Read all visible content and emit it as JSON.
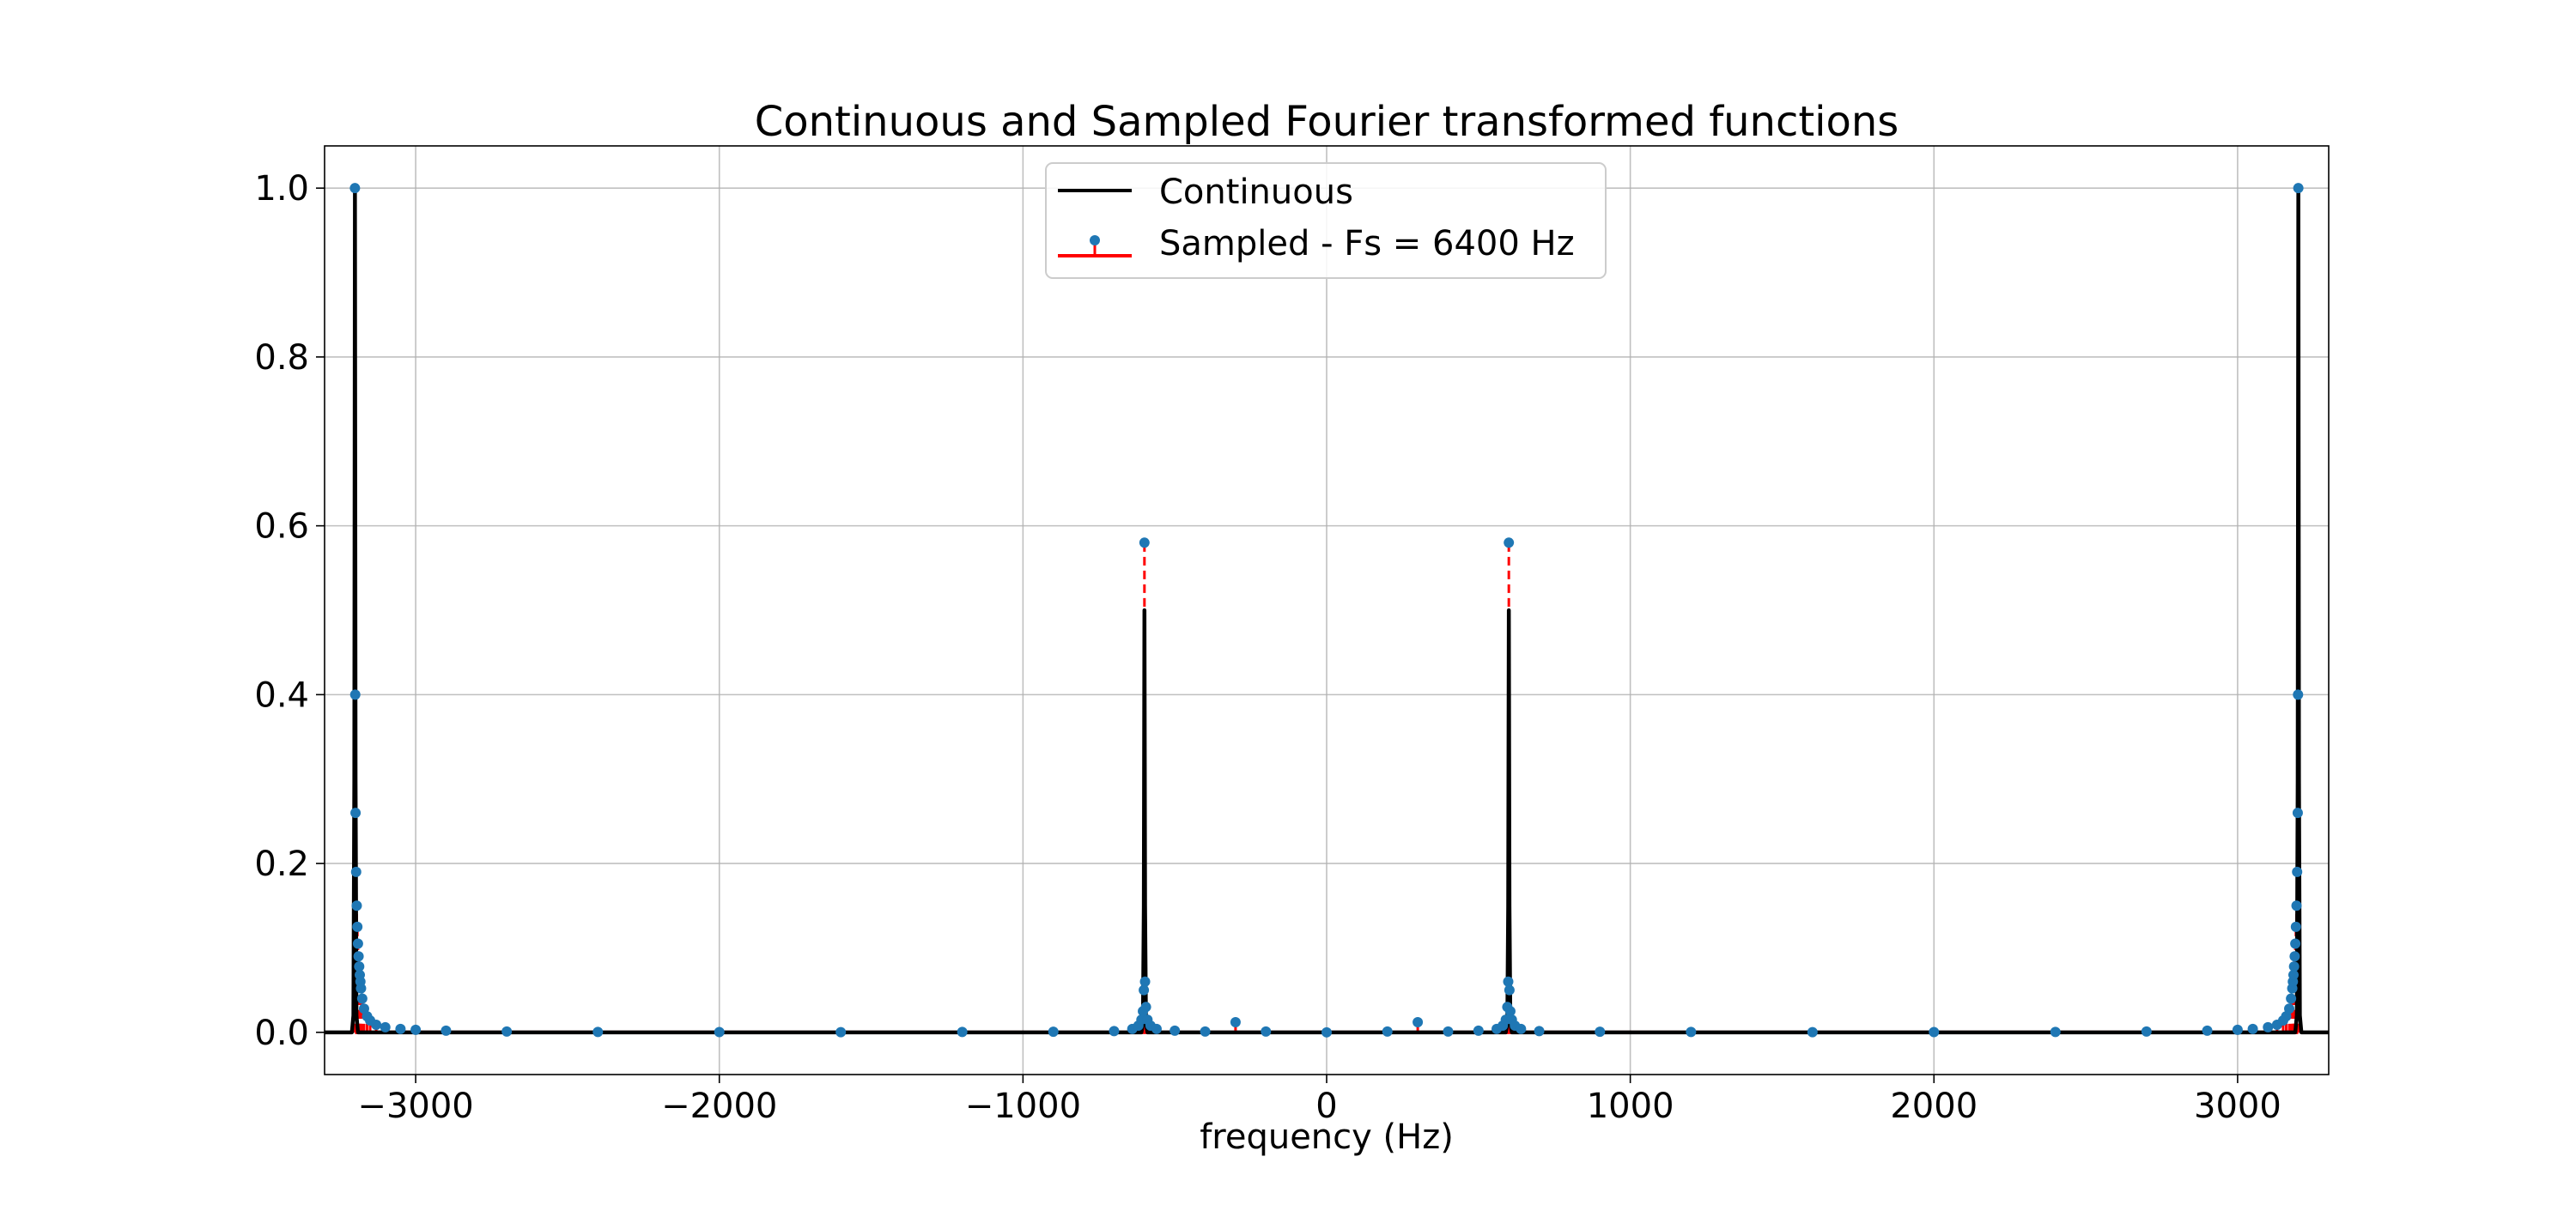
{
  "chart_data": {
    "type": "line",
    "title": "Continuous and Sampled Fourier transformed functions",
    "xlabel": "frequency (Hz)",
    "ylabel": "",
    "xlim": [
      -3300,
      3300
    ],
    "ylim": [
      -0.05,
      1.05
    ],
    "grid": true,
    "legend_position": "top-center",
    "xticks": [
      -3000,
      -2000,
      -1000,
      0,
      1000,
      2000,
      3000
    ],
    "xtick_labels": [
      "−3000",
      "−2000",
      "−1000",
      "0",
      "1000",
      "2000",
      "3000"
    ],
    "yticks": [
      0.0,
      0.2,
      0.4,
      0.6,
      0.8,
      1.0
    ],
    "ytick_labels": [
      "0.0",
      "0.2",
      "0.4",
      "0.6",
      "0.8",
      "1.0"
    ],
    "series": [
      {
        "name": "Continuous",
        "kind": "line",
        "color": "#000000",
        "x": [
          -3300,
          -3210,
          -3205,
          -3202,
          -3200,
          -3198,
          -3195,
          -3190,
          -3150,
          -1000,
          -610,
          -605,
          -602,
          -600,
          -598,
          -595,
          -590,
          -300,
          0,
          300,
          590,
          595,
          598,
          600,
          602,
          605,
          610,
          1000,
          3150,
          3190,
          3195,
          3198,
          3200,
          3202,
          3205,
          3210,
          3300
        ],
        "y": [
          0.0,
          0.0,
          0.02,
          0.3,
          1.0,
          0.3,
          0.02,
          0.0,
          0.0,
          0.0,
          0.0,
          0.01,
          0.15,
          0.5,
          0.15,
          0.01,
          0.0,
          0.0,
          0.0,
          0.0,
          0.0,
          0.01,
          0.15,
          0.5,
          0.15,
          0.01,
          0.0,
          0.0,
          0.0,
          0.0,
          0.02,
          0.3,
          1.0,
          0.3,
          0.02,
          0.0,
          0.0
        ]
      },
      {
        "name": "Sampled - Fs = 6400 Hz",
        "kind": "stem",
        "color": "#ff0000",
        "marker_color": "#1f77b4",
        "x": [
          -3200,
          -3199,
          -3198,
          -3196,
          -3194,
          -3192,
          -3190,
          -3188,
          -3186,
          -3184,
          -3182,
          -3180,
          -3176,
          -3170,
          -3160,
          -3150,
          -3130,
          -3100,
          -3050,
          -3000,
          -2900,
          -2700,
          -2400,
          -2000,
          -1600,
          -1200,
          -900,
          -700,
          -640,
          -620,
          -610,
          -605,
          -602,
          -600,
          -598,
          -595,
          -590,
          -580,
          -560,
          -500,
          -400,
          -300,
          -200,
          0,
          200,
          300,
          400,
          500,
          560,
          580,
          590,
          595,
          598,
          600,
          602,
          605,
          610,
          620,
          640,
          700,
          900,
          1200,
          1600,
          2000,
          2400,
          2700,
          2900,
          3000,
          3050,
          3100,
          3130,
          3150,
          3160,
          3170,
          3176,
          3180,
          3182,
          3184,
          3186,
          3188,
          3190,
          3192,
          3194,
          3196,
          3198,
          3199,
          3200
        ],
        "y": [
          1.0,
          0.4,
          0.26,
          0.19,
          0.15,
          0.125,
          0.105,
          0.09,
          0.078,
          0.068,
          0.06,
          0.052,
          0.04,
          0.028,
          0.019,
          0.014,
          0.009,
          0.006,
          0.004,
          0.003,
          0.002,
          0.001,
          0.0005,
          0.0003,
          0.0002,
          0.0004,
          0.0007,
          0.0015,
          0.004,
          0.008,
          0.015,
          0.025,
          0.05,
          0.58,
          0.06,
          0.03,
          0.015,
          0.008,
          0.004,
          0.002,
          0.001,
          0.012,
          0.001,
          0.0,
          0.001,
          0.012,
          0.001,
          0.002,
          0.004,
          0.008,
          0.015,
          0.03,
          0.06,
          0.58,
          0.05,
          0.025,
          0.015,
          0.008,
          0.004,
          0.0015,
          0.0007,
          0.0004,
          0.0002,
          0.0003,
          0.0005,
          0.001,
          0.002,
          0.003,
          0.004,
          0.006,
          0.009,
          0.014,
          0.019,
          0.028,
          0.04,
          0.052,
          0.06,
          0.068,
          0.078,
          0.09,
          0.105,
          0.125,
          0.15,
          0.19,
          0.26,
          0.4,
          1.0
        ]
      }
    ]
  }
}
